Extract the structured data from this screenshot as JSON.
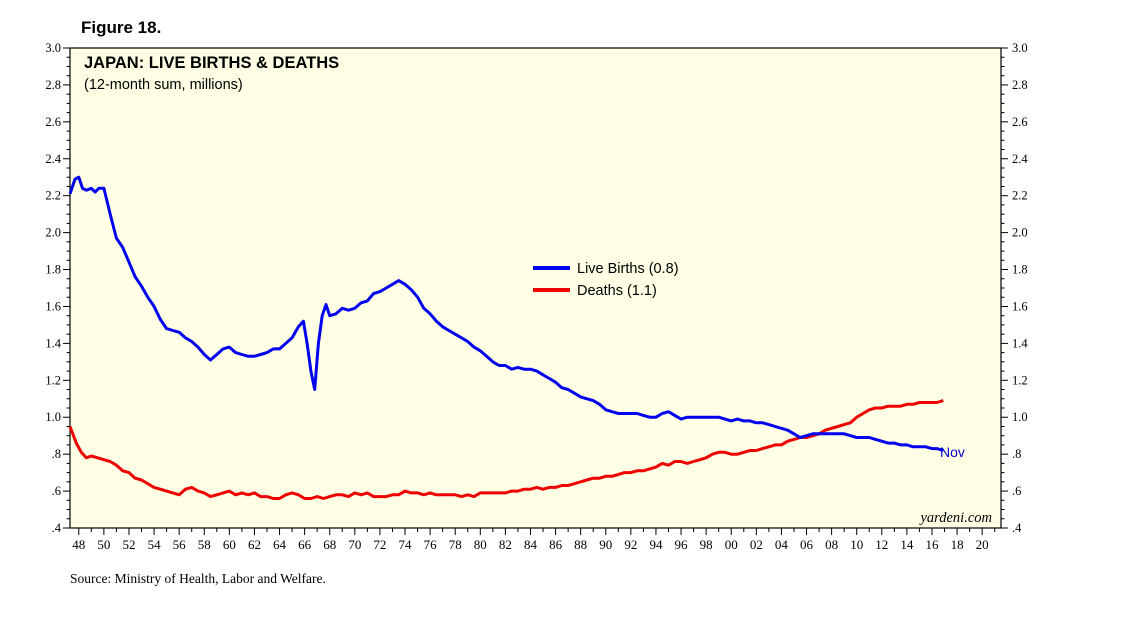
{
  "figure_label": "Figure 18.",
  "source": "Source: Ministry of Health, Labor and Welfare.",
  "watermark": "yardeni.com",
  "colors": {
    "plot_bg": "#ffffe5",
    "births": "#0000ee",
    "deaths": "#ee0000",
    "end_label": "#0000cc"
  },
  "chart_data": {
    "type": "line",
    "title": "JAPAN: LIVE BIRTHS & DEATHS",
    "subtitle": "(12-month sum, millions)",
    "xlabel": "",
    "ylabel": "",
    "xlim": [
      1947.3,
      2021.5
    ],
    "ylim": [
      0.4,
      3.0
    ],
    "y_ticks": [
      0.4,
      0.6,
      0.8,
      1.0,
      1.2,
      1.4,
      1.6,
      1.8,
      2.0,
      2.2,
      2.4,
      2.6,
      2.8,
      3.0
    ],
    "y_tick_labels": [
      ".4",
      ".6",
      ".8",
      "1.0",
      "1.2",
      "1.4",
      "1.6",
      "1.8",
      "2.0",
      "2.2",
      "2.4",
      "2.6",
      "2.8",
      "3.0"
    ],
    "x_ticks": [
      1948,
      1950,
      1952,
      1954,
      1956,
      1958,
      1960,
      1962,
      1964,
      1966,
      1968,
      1970,
      1972,
      1974,
      1976,
      1978,
      1980,
      1982,
      1984,
      1986,
      1988,
      1990,
      1992,
      1994,
      1996,
      1998,
      2000,
      2002,
      2004,
      2006,
      2008,
      2010,
      2012,
      2014,
      2016,
      2018,
      2020
    ],
    "x_tick_labels": [
      "48",
      "50",
      "52",
      "54",
      "56",
      "58",
      "60",
      "62",
      "64",
      "66",
      "68",
      "70",
      "72",
      "74",
      "76",
      "78",
      "80",
      "82",
      "84",
      "86",
      "88",
      "90",
      "92",
      "94",
      "96",
      "98",
      "00",
      "02",
      "04",
      "06",
      "08",
      "10",
      "12",
      "14",
      "16",
      "18",
      "20"
    ],
    "series": [
      {
        "name": "Live Births",
        "legend_label": "Live Births (0.8)",
        "end_label": "Nov",
        "x": [
          1947.3,
          1947.7,
          1948.0,
          1948.3,
          1948.6,
          1949.0,
          1949.3,
          1949.6,
          1950.0,
          1950.5,
          1951.0,
          1951.5,
          1952.0,
          1952.5,
          1953.0,
          1953.5,
          1954.0,
          1954.5,
          1955.0,
          1955.5,
          1956.0,
          1956.5,
          1957.0,
          1957.5,
          1958.0,
          1958.5,
          1959.0,
          1959.5,
          1960.0,
          1960.5,
          1961.0,
          1961.5,
          1962.0,
          1962.5,
          1963.0,
          1963.5,
          1964.0,
          1964.5,
          1965.0,
          1965.5,
          1965.9,
          1966.2,
          1966.5,
          1966.8,
          1967.1,
          1967.4,
          1967.7,
          1968.0,
          1968.5,
          1969.0,
          1969.5,
          1970.0,
          1970.5,
          1971.0,
          1971.5,
          1972.0,
          1972.5,
          1973.0,
          1973.5,
          1974.0,
          1974.5,
          1975.0,
          1975.5,
          1976.0,
          1976.5,
          1977.0,
          1977.5,
          1978.0,
          1978.5,
          1979.0,
          1979.5,
          1980.0,
          1980.5,
          1981.0,
          1981.5,
          1982.0,
          1982.5,
          1983.0,
          1983.5,
          1984.0,
          1984.5,
          1985.0,
          1985.5,
          1986.0,
          1986.5,
          1987.0,
          1987.5,
          1988.0,
          1988.5,
          1989.0,
          1989.5,
          1990.0,
          1990.5,
          1991.0,
          1991.5,
          1992.0,
          1992.5,
          1993.0,
          1993.5,
          1994.0,
          1994.5,
          1995.0,
          1995.5,
          1996.0,
          1996.5,
          1997.0,
          1997.5,
          1998.0,
          1998.5,
          1999.0,
          1999.5,
          2000.0,
          2000.5,
          2001.0,
          2001.5,
          2002.0,
          2002.5,
          2003.0,
          2003.5,
          2004.0,
          2004.5,
          2005.0,
          2005.5,
          2006.0,
          2006.5,
          2007.0,
          2007.5,
          2008.0,
          2008.5,
          2009.0,
          2009.5,
          2010.0,
          2010.5,
          2011.0,
          2011.5,
          2012.0,
          2012.5,
          2013.0,
          2013.5,
          2014.0,
          2014.5,
          2015.0,
          2015.5,
          2016.0,
          2016.4,
          2016.9
        ],
        "values": [
          2.21,
          2.29,
          2.3,
          2.24,
          2.23,
          2.24,
          2.22,
          2.24,
          2.24,
          2.1,
          1.97,
          1.92,
          1.84,
          1.76,
          1.71,
          1.65,
          1.6,
          1.53,
          1.48,
          1.47,
          1.46,
          1.43,
          1.41,
          1.38,
          1.34,
          1.31,
          1.34,
          1.37,
          1.38,
          1.35,
          1.34,
          1.33,
          1.33,
          1.34,
          1.35,
          1.37,
          1.37,
          1.4,
          1.43,
          1.49,
          1.52,
          1.4,
          1.25,
          1.15,
          1.4,
          1.55,
          1.61,
          1.55,
          1.56,
          1.59,
          1.58,
          1.59,
          1.62,
          1.63,
          1.67,
          1.68,
          1.7,
          1.72,
          1.74,
          1.72,
          1.69,
          1.65,
          1.59,
          1.56,
          1.52,
          1.49,
          1.47,
          1.45,
          1.43,
          1.41,
          1.38,
          1.36,
          1.33,
          1.3,
          1.28,
          1.28,
          1.26,
          1.27,
          1.26,
          1.26,
          1.25,
          1.23,
          1.21,
          1.19,
          1.16,
          1.15,
          1.13,
          1.11,
          1.1,
          1.09,
          1.07,
          1.04,
          1.03,
          1.02,
          1.02,
          1.02,
          1.02,
          1.01,
          1.0,
          1.0,
          1.02,
          1.03,
          1.01,
          0.99,
          1.0,
          1.0,
          1.0,
          1.0,
          1.0,
          1.0,
          0.99,
          0.98,
          0.99,
          0.98,
          0.98,
          0.97,
          0.97,
          0.96,
          0.95,
          0.94,
          0.93,
          0.91,
          0.89,
          0.9,
          0.91,
          0.91,
          0.91,
          0.91,
          0.91,
          0.91,
          0.9,
          0.89,
          0.89,
          0.89,
          0.88,
          0.87,
          0.86,
          0.86,
          0.85,
          0.85,
          0.84,
          0.84,
          0.84,
          0.83,
          0.83,
          0.82
        ]
      },
      {
        "name": "Deaths",
        "legend_label": "Deaths (1.1)",
        "x": [
          1947.3,
          1947.8,
          1948.2,
          1948.6,
          1949.0,
          1949.5,
          1950.0,
          1950.5,
          1951.0,
          1951.5,
          1952.0,
          1952.5,
          1953.0,
          1953.5,
          1954.0,
          1954.5,
          1955.0,
          1955.5,
          1956.0,
          1956.5,
          1957.0,
          1957.5,
          1958.0,
          1958.5,
          1959.0,
          1959.5,
          1960.0,
          1960.5,
          1961.0,
          1961.5,
          1962.0,
          1962.5,
          1963.0,
          1963.5,
          1964.0,
          1964.5,
          1965.0,
          1965.5,
          1966.0,
          1966.5,
          1967.0,
          1967.5,
          1968.0,
          1968.5,
          1969.0,
          1969.5,
          1970.0,
          1970.5,
          1971.0,
          1971.5,
          1972.0,
          1972.5,
          1973.0,
          1973.5,
          1974.0,
          1974.5,
          1975.0,
          1975.5,
          1976.0,
          1976.5,
          1977.0,
          1977.5,
          1978.0,
          1978.5,
          1979.0,
          1979.5,
          1980.0,
          1980.5,
          1981.0,
          1981.5,
          1982.0,
          1982.5,
          1983.0,
          1983.5,
          1984.0,
          1984.5,
          1985.0,
          1985.5,
          1986.0,
          1986.5,
          1987.0,
          1987.5,
          1988.0,
          1988.5,
          1989.0,
          1989.5,
          1990.0,
          1990.5,
          1991.0,
          1991.5,
          1992.0,
          1992.5,
          1993.0,
          1993.5,
          1994.0,
          1994.5,
          1995.0,
          1995.5,
          1996.0,
          1996.5,
          1997.0,
          1997.5,
          1998.0,
          1998.5,
          1999.0,
          1999.5,
          2000.0,
          2000.5,
          2001.0,
          2001.5,
          2002.0,
          2002.5,
          2003.0,
          2003.5,
          2004.0,
          2004.5,
          2005.0,
          2005.5,
          2006.0,
          2006.5,
          2007.0,
          2007.5,
          2008.0,
          2008.5,
          2009.0,
          2009.5,
          2010.0,
          2010.5,
          2011.0,
          2011.5,
          2012.0,
          2012.5,
          2013.0,
          2013.5,
          2014.0,
          2014.5,
          2015.0,
          2015.5,
          2016.0,
          2016.4,
          2016.9
        ],
        "values": [
          0.95,
          0.86,
          0.81,
          0.78,
          0.79,
          0.78,
          0.77,
          0.76,
          0.74,
          0.71,
          0.7,
          0.67,
          0.66,
          0.64,
          0.62,
          0.61,
          0.6,
          0.59,
          0.58,
          0.61,
          0.62,
          0.6,
          0.59,
          0.57,
          0.58,
          0.59,
          0.6,
          0.58,
          0.59,
          0.58,
          0.59,
          0.57,
          0.57,
          0.56,
          0.56,
          0.58,
          0.59,
          0.58,
          0.56,
          0.56,
          0.57,
          0.56,
          0.57,
          0.58,
          0.58,
          0.57,
          0.59,
          0.58,
          0.59,
          0.57,
          0.57,
          0.57,
          0.58,
          0.58,
          0.6,
          0.59,
          0.59,
          0.58,
          0.59,
          0.58,
          0.58,
          0.58,
          0.58,
          0.57,
          0.58,
          0.57,
          0.59,
          0.59,
          0.59,
          0.59,
          0.59,
          0.6,
          0.6,
          0.61,
          0.61,
          0.62,
          0.61,
          0.62,
          0.62,
          0.63,
          0.63,
          0.64,
          0.65,
          0.66,
          0.67,
          0.67,
          0.68,
          0.68,
          0.69,
          0.7,
          0.7,
          0.71,
          0.71,
          0.72,
          0.73,
          0.75,
          0.74,
          0.76,
          0.76,
          0.75,
          0.76,
          0.77,
          0.78,
          0.8,
          0.81,
          0.81,
          0.8,
          0.8,
          0.81,
          0.82,
          0.82,
          0.83,
          0.84,
          0.85,
          0.85,
          0.87,
          0.88,
          0.89,
          0.89,
          0.9,
          0.91,
          0.93,
          0.94,
          0.95,
          0.96,
          0.97,
          1.0,
          1.02,
          1.04,
          1.05,
          1.05,
          1.06,
          1.06,
          1.06,
          1.07,
          1.07,
          1.08,
          1.08,
          1.08,
          1.08,
          1.09
        ]
      }
    ],
    "legend_position": "center"
  }
}
